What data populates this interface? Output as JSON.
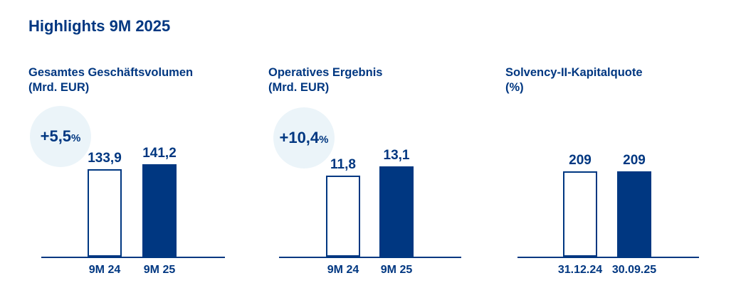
{
  "page_title": "Highlights 9M 2025",
  "colors": {
    "brand_blue": "#003781",
    "badge_background": "#EBF4F9",
    "background": "#FFFFFF"
  },
  "chart_data": [
    {
      "type": "bar",
      "title": "Gesamtes Geschäftsvolumen",
      "unit": "(Mrd. EUR)",
      "categories": [
        "9M 24",
        "9M 25"
      ],
      "values": [
        133.9,
        141.2
      ],
      "value_labels": [
        "133,9",
        "141,2"
      ],
      "delta": {
        "text": "+5,5",
        "suffix": "%"
      },
      "bar_styles": [
        "outline",
        "solid"
      ],
      "grid": false,
      "legend": false,
      "ylim": [
        0,
        141.2
      ]
    },
    {
      "type": "bar",
      "title": "Operatives Ergebnis",
      "unit": "(Mrd. EUR)",
      "categories": [
        "9M 24",
        "9M 25"
      ],
      "values": [
        11.8,
        13.1
      ],
      "value_labels": [
        "11,8",
        "13,1"
      ],
      "delta": {
        "text": "+10,4",
        "suffix": "%"
      },
      "bar_styles": [
        "outline",
        "solid"
      ],
      "grid": false,
      "legend": false,
      "ylim": [
        0,
        13.1
      ]
    },
    {
      "type": "bar",
      "title": "Solvency-II-Kapitalquote",
      "unit": "(%)",
      "categories": [
        "31.12.24",
        "30.09.25"
      ],
      "values": [
        209,
        209
      ],
      "value_labels": [
        "209",
        "209"
      ],
      "delta": null,
      "bar_styles": [
        "outline",
        "solid"
      ],
      "grid": false,
      "legend": false,
      "ylim": [
        0,
        209
      ]
    }
  ]
}
